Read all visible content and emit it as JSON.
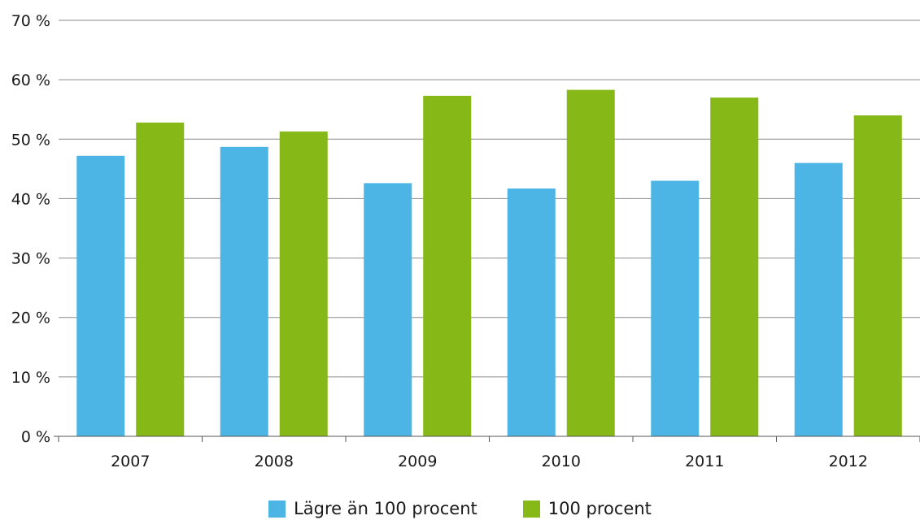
{
  "chart_data": {
    "type": "bar",
    "categories": [
      "2007",
      "2008",
      "2009",
      "2010",
      "2011",
      "2012"
    ],
    "series": [
      {
        "name": "Lägre än 100 procent",
        "color": "#4db5e6",
        "values": [
          47.2,
          48.7,
          42.6,
          41.7,
          43.0,
          46.0
        ]
      },
      {
        "name": "100 procent",
        "color": "#86b817",
        "values": [
          52.8,
          51.3,
          57.3,
          58.3,
          57.0,
          54.0
        ]
      }
    ],
    "ylim": [
      0,
      70
    ],
    "yticks": [
      0,
      10,
      20,
      30,
      40,
      50,
      60,
      70
    ],
    "ytick_labels": [
      "0 %",
      "10 %",
      "20 %",
      "30 %",
      "40 %",
      "50 %",
      "60 %",
      "70 %"
    ],
    "grid": true,
    "legend_position": "bottom-center"
  }
}
